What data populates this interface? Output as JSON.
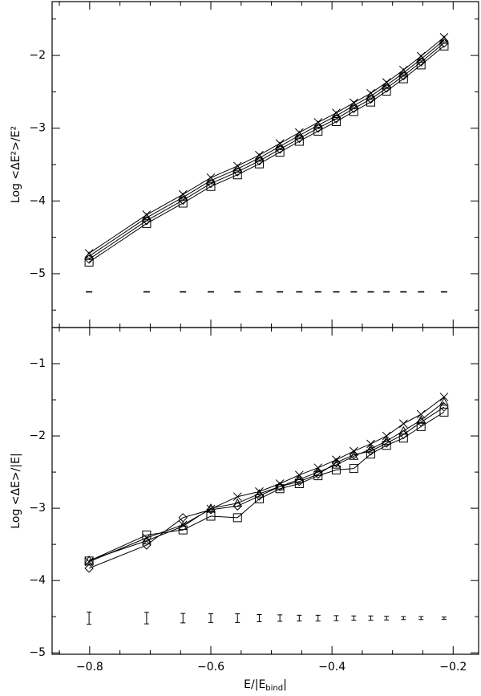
{
  "chart_data": [
    {
      "type": "line",
      "y_label": "Log <ΔE²>/E²",
      "x": [
        -0.801,
        -0.706,
        -0.646,
        -0.6,
        -0.556,
        -0.52,
        -0.486,
        -0.454,
        -0.423,
        -0.393,
        -0.364,
        -0.336,
        -0.31,
        -0.282,
        -0.253,
        -0.215
      ],
      "xlim": [
        -0.862,
        -0.158
      ],
      "xticks": [
        -0.8,
        -0.6,
        -0.4,
        -0.2
      ],
      "ylim": [
        -5.74,
        -1.26
      ],
      "yticks": [
        {
          "value": -2,
          "label": "−2"
        },
        {
          "value": -3,
          "label": "−3"
        },
        {
          "value": -4,
          "label": "−4"
        },
        {
          "value": -5,
          "label": "−5"
        }
      ],
      "series": [
        {
          "marker": "cross",
          "line": true,
          "color": "#000000",
          "values": [
            -4.72,
            -4.19,
            -3.91,
            -3.68,
            -3.52,
            -3.37,
            -3.21,
            -3.06,
            -2.92,
            -2.79,
            -2.65,
            -2.52,
            -2.37,
            -2.2,
            -2.01,
            -1.75
          ]
        },
        {
          "marker": "triangle",
          "line": true,
          "color": "#000000",
          "values": [
            -4.76,
            -4.23,
            -3.95,
            -3.72,
            -3.56,
            -3.41,
            -3.25,
            -3.1,
            -2.96,
            -2.83,
            -2.69,
            -2.56,
            -2.41,
            -2.24,
            -2.05,
            -1.79
          ]
        },
        {
          "marker": "diamond",
          "line": true,
          "color": "#000000",
          "values": [
            -4.8,
            -4.27,
            -3.99,
            -3.76,
            -3.6,
            -3.45,
            -3.29,
            -3.14,
            -3.0,
            -2.87,
            -2.73,
            -2.6,
            -2.45,
            -2.28,
            -2.09,
            -1.83
          ]
        },
        {
          "marker": "square",
          "line": true,
          "color": "#000000",
          "values": [
            -4.84,
            -4.31,
            -4.03,
            -3.8,
            -3.64,
            -3.49,
            -3.33,
            -3.18,
            -3.04,
            -2.91,
            -2.77,
            -2.64,
            -2.49,
            -2.32,
            -2.13,
            -1.87
          ]
        },
        {
          "marker": "dash",
          "line": false,
          "color": "#000000",
          "values": [
            -5.25,
            -5.25,
            -5.25,
            -5.25,
            -5.25,
            -5.25,
            -5.25,
            -5.25,
            -5.25,
            -5.25,
            -5.25,
            -5.25,
            -5.25,
            -5.25,
            -5.25,
            -5.25
          ]
        }
      ]
    },
    {
      "type": "line",
      "y_label": "Log <ΔE>/|E|",
      "x_label": [
        "E/|E",
        "bind",
        "|"
      ],
      "x": [
        -0.801,
        -0.706,
        -0.646,
        -0.6,
        -0.556,
        -0.52,
        -0.486,
        -0.454,
        -0.423,
        -0.393,
        -0.364,
        -0.336,
        -0.31,
        -0.282,
        -0.253,
        -0.215
      ],
      "xlim": [
        -0.862,
        -0.158
      ],
      "xticks": [
        {
          "value": -0.8,
          "label": "−0.8"
        },
        {
          "value": -0.6,
          "label": "−0.6"
        },
        {
          "value": -0.4,
          "label": "−0.4"
        },
        {
          "value": -0.2,
          "label": "−0.2"
        }
      ],
      "ylim": [
        -5.02,
        -0.5
      ],
      "yticks": [
        {
          "value": -1,
          "label": "−1"
        },
        {
          "value": -2,
          "label": "−2"
        },
        {
          "value": -3,
          "label": "−3"
        },
        {
          "value": -4,
          "label": "−4"
        },
        {
          "value": -5,
          "label": "−5"
        }
      ],
      "series": [
        {
          "marker": "cross",
          "line": true,
          "color": "#000000",
          "values": [
            -3.74,
            -3.41,
            -3.23,
            -3.01,
            -2.84,
            -2.77,
            -2.66,
            -2.54,
            -2.44,
            -2.33,
            -2.21,
            -2.11,
            -2.0,
            -1.83,
            -1.7,
            -1.46
          ]
        },
        {
          "marker": "triangle",
          "line": true,
          "color": "#000000",
          "values": [
            -3.72,
            -3.45,
            -3.25,
            -3.0,
            -2.93,
            -2.8,
            -2.7,
            -2.6,
            -2.5,
            -2.4,
            -2.28,
            -2.18,
            -2.07,
            -1.93,
            -1.78,
            -1.53
          ]
        },
        {
          "marker": "diamond",
          "line": true,
          "color": "#000000",
          "values": [
            -3.83,
            -3.51,
            -3.13,
            -3.02,
            -2.97,
            -2.83,
            -2.7,
            -2.63,
            -2.53,
            -2.37,
            -2.26,
            -2.21,
            -2.1,
            -1.98,
            -1.81,
            -1.6
          ]
        },
        {
          "marker": "square",
          "line": true,
          "color": "#000000",
          "values": [
            -3.73,
            -3.37,
            -3.3,
            -3.11,
            -3.13,
            -2.87,
            -2.73,
            -2.66,
            -2.55,
            -2.47,
            -2.45,
            -2.25,
            -2.13,
            -2.03,
            -1.87,
            -1.67
          ]
        },
        {
          "marker": "errorbar",
          "line": false,
          "color": "#000000",
          "values": [
            -4.52,
            -4.52,
            -4.52,
            -4.52,
            -4.52,
            -4.52,
            -4.52,
            -4.52,
            -4.52,
            -4.52,
            -4.52,
            -4.52,
            -4.52,
            -4.52,
            -4.52,
            -4.52
          ],
          "errors": [
            0.085,
            0.08,
            0.065,
            0.06,
            0.06,
            0.05,
            0.045,
            0.04,
            0.04,
            0.035,
            0.03,
            0.03,
            0.025,
            0.02,
            0.02,
            0.015
          ]
        }
      ]
    }
  ]
}
